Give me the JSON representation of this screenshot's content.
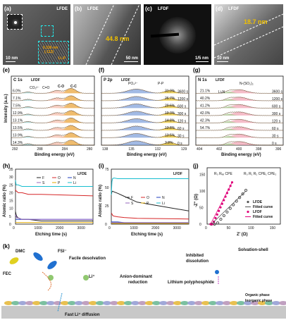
{
  "panels": {
    "a": {
      "letter": "(a)",
      "tag": "LFDE",
      "scale": "10 nm",
      "inset_d": "0.336 nm",
      "inset_plane": "(-113)",
      "inset_phase": "Li₃P"
    },
    "b": {
      "letter": "(b)",
      "tag": "LFDE",
      "thickness": "44.8 nm",
      "scale": "50 nm"
    },
    "c": {
      "letter": "(c)",
      "tag": "LFDF",
      "scale": "1/5 nm"
    },
    "d": {
      "letter": "(d)",
      "tag": "LFDF",
      "thickness": "18.7 nm",
      "scale": "10 nm"
    },
    "e": {
      "letter": "(e)",
      "title": "C 1s",
      "tag": "LFDF",
      "peaks": [
        "C-O",
        "C-C",
        "CO₃²⁻",
        "C=O"
      ],
      "pcts": [
        "6.0%",
        "7.1%",
        "7.5%",
        "12.9%",
        "13.1%",
        "13.5%",
        "13.9%",
        "14.3%"
      ],
      "xlabel": "Binding energy (eV)",
      "ylabel": "Intensity (a.u.)",
      "xticks": [
        "292",
        "288",
        "284",
        "280"
      ]
    },
    "f": {
      "letter": "(f)",
      "title": "P 2p",
      "tag": "LFDF",
      "peaks": [
        "PO₄³⁻",
        "P-P"
      ],
      "pcts": [
        "31.0%",
        "26.7%",
        "20.6%",
        "19.3%",
        "14.8%",
        "13.8%",
        "13.5%",
        "3.8%"
      ],
      "times": [
        "3600 s",
        "1200 s",
        "600 s",
        "300 s",
        "120 s",
        "60 s",
        "30 s",
        "0 s"
      ],
      "xlabel": "Binding energy (eV)",
      "xticks": [
        "138",
        "135",
        "132",
        "129"
      ]
    },
    "g": {
      "letter": "(g)",
      "title": "N 1s",
      "tag": "LFDF",
      "peaks": [
        "N-(SO₂)₂",
        "LiₓN"
      ],
      "pcts": [
        "21.1%",
        "40.2%",
        "41.2%",
        "42.0%",
        "42.3%",
        "54.7%"
      ],
      "times": [
        "3600 s",
        "1200 s",
        "600 s",
        "300 s",
        "120 s",
        "60 s",
        "30 s",
        "0 s"
      ],
      "xlabel": "Binding energy (eV)",
      "xticks": [
        "404",
        "402",
        "400",
        "398",
        "396"
      ]
    },
    "h": {
      "letter": "(h)",
      "tag": "LFDE",
      "ylabel": "Atomic ratio (%)",
      "xlabel": "Etching time (s)",
      "yticks": [
        "0",
        "5",
        "10",
        "15",
        "20",
        "25",
        "30",
        "35"
      ],
      "xticks": [
        "0",
        "1000",
        "2000",
        "3000"
      ],
      "legend": [
        "F",
        "O",
        "N",
        "S",
        "P",
        "Li"
      ]
    },
    "i": {
      "letter": "(i)",
      "tag": "LFDF",
      "ylabel": "Atomic ratio (%)",
      "xlabel": "Etching time (s)",
      "yticks": [
        "0",
        "25",
        "50",
        "75"
      ],
      "xticks": [
        "0",
        "1000",
        "2000",
        "3000"
      ],
      "legend": [
        "F",
        "O",
        "N",
        "S",
        "P",
        "Li"
      ]
    },
    "j": {
      "letter": "(j)",
      "ylabel": "-Z'' (Ω)",
      "xlabel": "Z' (Ω)",
      "xticks": [
        "0",
        "50",
        "100",
        "150"
      ],
      "yticks": [
        "0",
        "50",
        "100",
        "150"
      ],
      "legend": [
        "LFDE",
        "Fitted curve",
        "LFDF",
        "Fitted curve"
      ],
      "circuit1": "R₀  Rᵢₑᵢ   CPE",
      "circuit2": "R₀ R₁   R₂   CPE₁ CPE₂"
    },
    "k": {
      "letter": "(k)",
      "labels": [
        "DMC",
        "FSI⁻",
        "FEC",
        "Facile desolvation",
        "Li⁺",
        "Anion-dominant reduction",
        "Inhibited dissolution",
        "Solvation-shell",
        "Lithium polyphosphide",
        "Organic phase",
        "Inorganic phase",
        "Fast Li⁺ diffusion"
      ]
    }
  },
  "colors": {
    "F": "#222222",
    "O": "#d62728",
    "N": "#1f3fbf",
    "S": "#9467bd",
    "P": "#e0a800",
    "Li": "#17becf",
    "lfde": "#333333",
    "lfdf": "#e0007a",
    "cc": "#e8a030",
    "co": "#f4b9a8",
    "po4": "#7a9cd8",
    "pp": "#e8c020",
    "nso2": "#f0a0b0",
    "lixn": "#a0d090"
  }
}
